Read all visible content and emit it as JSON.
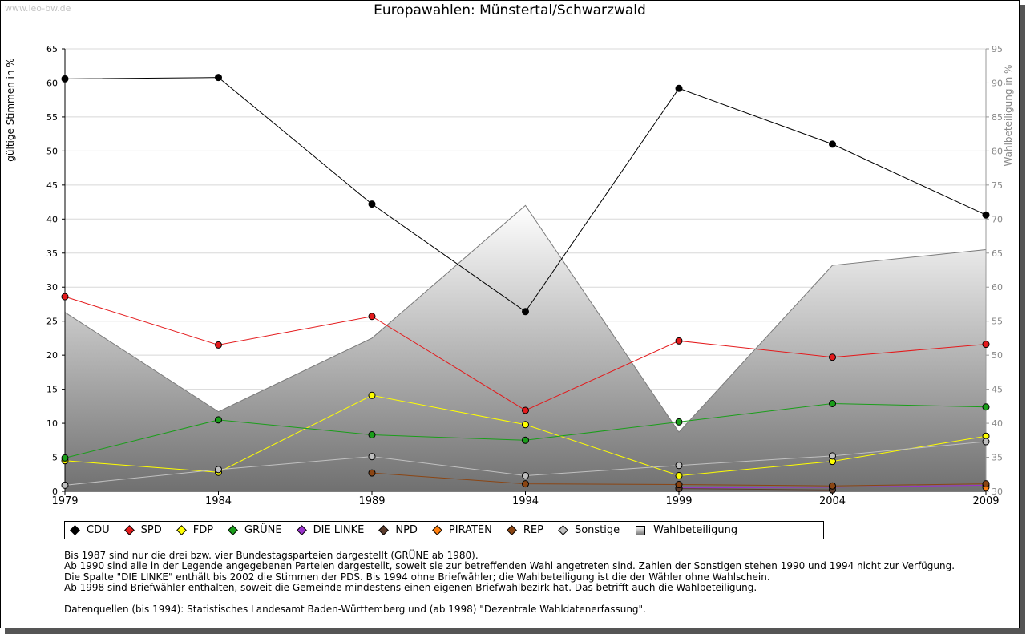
{
  "watermark": "www.leo-bw.de",
  "chart_data": {
    "type": "line",
    "title": "Europawahlen: Münstertal/Schwarzwald",
    "ylabel": "gültige Stimmen in %",
    "y2label": "Wahlbeteiligung in %",
    "x": [
      "1979",
      "1984",
      "1989",
      "1994",
      "1999",
      "2004",
      "2009"
    ],
    "ylim": [
      0,
      65
    ],
    "y2lim": [
      30,
      95
    ],
    "yticks": [
      "0",
      "5",
      "10",
      "15",
      "20",
      "25",
      "30",
      "35",
      "40",
      "45",
      "50",
      "55",
      "60",
      "65"
    ],
    "y2ticks": [
      "30",
      "35",
      "40",
      "45",
      "50",
      "55",
      "60",
      "65",
      "70",
      "75",
      "80",
      "85",
      "90",
      "95"
    ],
    "grid": "horizontal",
    "legend_position": "bottom",
    "turnout": {
      "name": "Wahlbeteiligung",
      "type": "area",
      "axis": "right",
      "values": [
        56.3,
        41.7,
        52.5,
        72.0,
        38.7,
        63.2,
        65.5
      ]
    },
    "series": [
      {
        "name": "CDU",
        "color": "#000000",
        "values": [
          60.6,
          60.8,
          42.2,
          26.4,
          59.2,
          51.0,
          40.6
        ]
      },
      {
        "name": "SPD",
        "color": "#e41a1c",
        "values": [
          28.6,
          21.5,
          25.7,
          11.9,
          22.1,
          19.7,
          21.6
        ]
      },
      {
        "name": "FDP",
        "color": "#ffff00",
        "values": [
          4.5,
          2.8,
          14.1,
          9.8,
          2.3,
          4.4,
          8.1
        ]
      },
      {
        "name": "GRÜNE",
        "color": "#1a9e1a",
        "values": [
          4.9,
          10.5,
          8.3,
          7.5,
          10.2,
          12.9,
          12.4
        ]
      },
      {
        "name": "DIE LINKE",
        "color": "#9932cc",
        "values": [
          null,
          null,
          null,
          null,
          0.5,
          0.6,
          0.9
        ]
      },
      {
        "name": "NPD",
        "color": "#5c3d2e",
        "values": [
          null,
          null,
          null,
          null,
          0.4,
          0.2,
          null
        ]
      },
      {
        "name": "PIRATEN",
        "color": "#ff7f0e",
        "values": [
          null,
          null,
          null,
          null,
          null,
          null,
          0.6
        ]
      },
      {
        "name": "REP",
        "color": "#8b4513",
        "values": [
          null,
          null,
          2.7,
          1.1,
          1.0,
          0.8,
          1.1
        ]
      },
      {
        "name": "Sonstige",
        "color": "#c0c0c0",
        "values": [
          0.9,
          3.2,
          5.1,
          2.3,
          3.8,
          5.2,
          7.3
        ]
      }
    ]
  },
  "legend_items": [
    {
      "name": "CDU",
      "color": "#000000",
      "kind": "marker"
    },
    {
      "name": "SPD",
      "color": "#e41a1c",
      "kind": "marker"
    },
    {
      "name": "FDP",
      "color": "#ffff00",
      "kind": "marker"
    },
    {
      "name": "GRÜNE",
      "color": "#1a9e1a",
      "kind": "marker"
    },
    {
      "name": "DIE LINKE",
      "color": "#9932cc",
      "kind": "marker"
    },
    {
      "name": "NPD",
      "color": "#5c3d2e",
      "kind": "marker"
    },
    {
      "name": "PIRATEN",
      "color": "#ff7f0e",
      "kind": "marker"
    },
    {
      "name": "REP",
      "color": "#8b4513",
      "kind": "marker"
    },
    {
      "name": "Sonstige",
      "color": "#c0c0c0",
      "kind": "marker"
    },
    {
      "name": "Wahlbeteiligung",
      "color": "#808080",
      "kind": "box"
    }
  ],
  "notes": {
    "line1": "Bis 1987 sind nur die drei bzw. vier Bundestagsparteien dargestellt (GRÜNE ab 1980).",
    "line2": "Ab 1990 sind alle in der Legende angegebenen Parteien dargestellt, soweit sie zur betreffenden Wahl angetreten sind. Zahlen der Sonstigen stehen 1990 und 1994 nicht zur Verfügung.",
    "line3": "Die Spalte \"DIE LINKE\" enthält bis 2002 die Stimmen der PDS. Bis 1994 ohne Briefwähler; die Wahlbeteiligung ist die der Wähler ohne Wahlschein.",
    "line4": "Ab 1998 sind Briefwähler enthalten, soweit die Gemeinde mindestens einen eigenen Briefwahlbezirk hat. Das betrifft auch die Wahlbeteiligung.",
    "sources": "Datenquellen (bis 1994): Statistisches Landesamt Baden-Württemberg und (ab 1998) \"Dezentrale Wahldatenerfassung\"."
  }
}
